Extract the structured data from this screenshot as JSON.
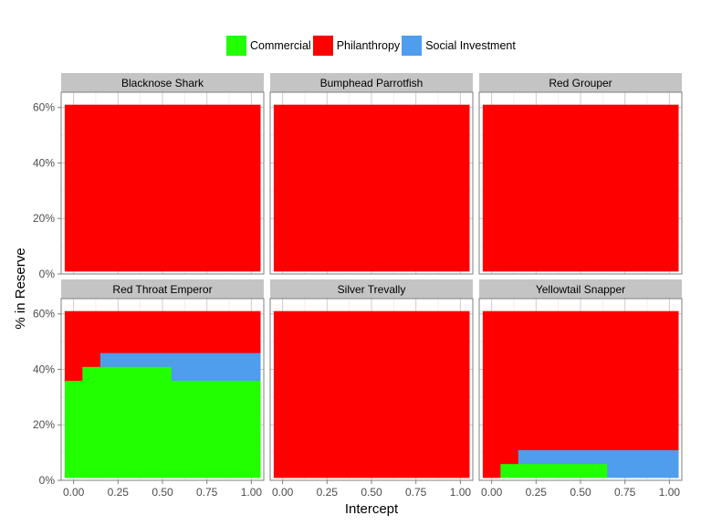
{
  "chart_data": {
    "type": "area",
    "chart_kind": "faceted stacked step area",
    "ylabel": "% in Reserve",
    "xlabel": "Intercept",
    "x_ticks": [
      "0.00",
      "0.25",
      "0.50",
      "0.75",
      "1.00"
    ],
    "y_ticks": [
      "0%",
      "20%",
      "40%",
      "60%"
    ],
    "xlim": [
      -0.07,
      1.07
    ],
    "ylim": [
      0,
      0.655
    ],
    "grid": true,
    "legend_position": "top",
    "legend": [
      {
        "name": "Commercial",
        "color": "#22ff00"
      },
      {
        "name": "Philanthropy",
        "color": "#ff0000"
      },
      {
        "name": "Social Investment",
        "color": "#4f9ded"
      }
    ],
    "facets": [
      {
        "title": "Blacknose Shark",
        "x_breaks": [
          -0.05,
          1.05
        ],
        "series": [
          {
            "name": "Commercial",
            "values": [
              0
            ]
          },
          {
            "name": "Social Investment",
            "values": [
              0
            ]
          },
          {
            "name": "Philanthropy",
            "values": [
              0.6
            ]
          }
        ]
      },
      {
        "title": "Bumphead Parrotfish",
        "x_breaks": [
          -0.05,
          1.05
        ],
        "series": [
          {
            "name": "Commercial",
            "values": [
              0
            ]
          },
          {
            "name": "Social Investment",
            "values": [
              0
            ]
          },
          {
            "name": "Philanthropy",
            "values": [
              0.6
            ]
          }
        ]
      },
      {
        "title": "Red Grouper",
        "x_breaks": [
          -0.05,
          1.05
        ],
        "series": [
          {
            "name": "Commercial",
            "values": [
              0
            ]
          },
          {
            "name": "Social Investment",
            "values": [
              0
            ]
          },
          {
            "name": "Philanthropy",
            "values": [
              0.6
            ]
          }
        ]
      },
      {
        "title": "Red Throat Emperor",
        "x_breaks": [
          -0.05,
          0.05,
          0.15,
          0.55,
          1.05
        ],
        "series": [
          {
            "name": "Commercial",
            "values": [
              0.35,
              0.4,
              0.4,
              0.35
            ]
          },
          {
            "name": "Social Investment",
            "values": [
              0,
              0,
              0.05,
              0.1
            ]
          },
          {
            "name": "Philanthropy",
            "values": [
              0.25,
              0.2,
              0.15,
              0.15
            ]
          }
        ]
      },
      {
        "title": "Silver Trevally",
        "x_breaks": [
          -0.05,
          1.05
        ],
        "series": [
          {
            "name": "Commercial",
            "values": [
              0
            ]
          },
          {
            "name": "Social Investment",
            "values": [
              0
            ]
          },
          {
            "name": "Philanthropy",
            "values": [
              0.6
            ]
          }
        ]
      },
      {
        "title": "Yellowtail Snapper",
        "x_breaks": [
          -0.05,
          0.05,
          0.15,
          0.65,
          1.05
        ],
        "series": [
          {
            "name": "Commercial",
            "values": [
              0,
              0.05,
              0.05,
              0
            ]
          },
          {
            "name": "Social Investment",
            "values": [
              0,
              0,
              0.05,
              0.1
            ]
          },
          {
            "name": "Philanthropy",
            "values": [
              0.6,
              0.55,
              0.5,
              0.5
            ]
          }
        ]
      }
    ]
  }
}
